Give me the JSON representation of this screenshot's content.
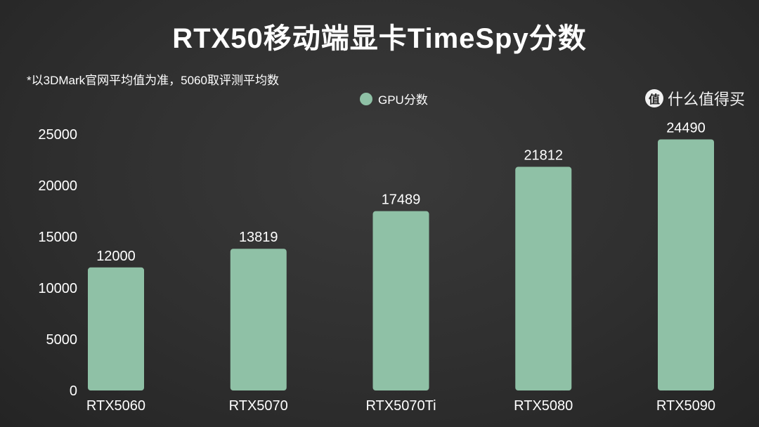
{
  "chart_data": {
    "type": "bar",
    "title": "RTX50移动端显卡TimeSpy分数",
    "subtitle": "*以3DMark官网平均值为准，5060取评测平均数",
    "categories": [
      "RTX5060",
      "RTX5070",
      "RTX5070Ti",
      "RTX5080",
      "RTX5090"
    ],
    "series": [
      {
        "name": "GPU分数",
        "values": [
          12000,
          13819,
          17489,
          21812,
          24490
        ],
        "color": "#8fc1a6"
      }
    ],
    "data_labels": [
      "12000",
      "13819",
      "17489",
      "21812",
      "24490"
    ],
    "yticks": [
      "0",
      "5000",
      "10000",
      "15000",
      "20000",
      "25000"
    ],
    "ylim": [
      0,
      25000
    ],
    "xlabel": "",
    "ylabel": "",
    "grid": false,
    "legend_position": "top-center"
  },
  "watermark": {
    "badge": "值",
    "text": "什么值得买"
  }
}
